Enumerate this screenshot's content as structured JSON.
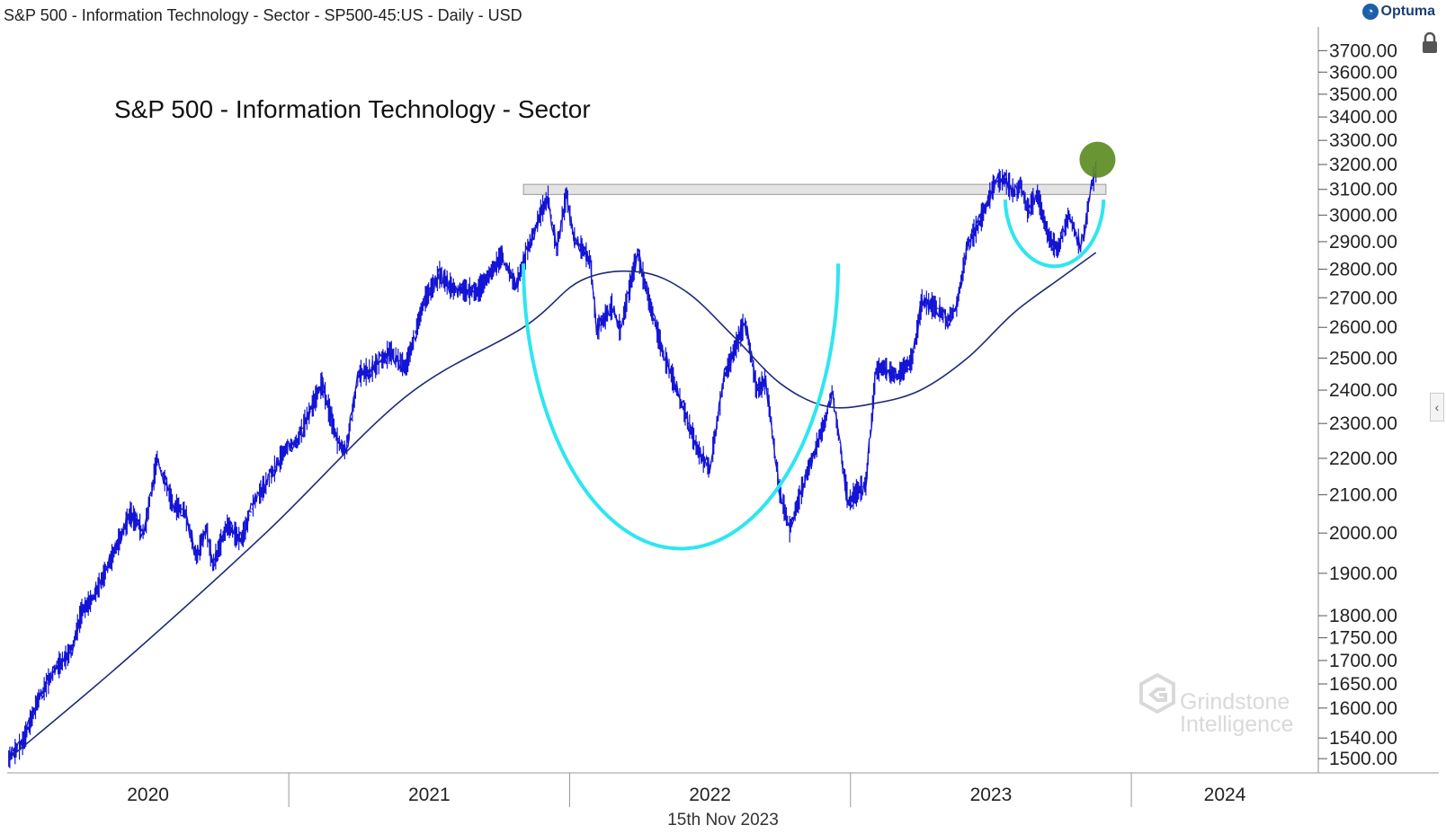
{
  "header": {
    "title": "S&P 500 - Information Technology - Sector - SP500-45:US - Daily - USD",
    "brand": "Optuma"
  },
  "footer": {
    "date": "15th Nov 2023"
  },
  "watermark": {
    "line1": "Grindstone",
    "line2": "Intelligence"
  },
  "icons": {
    "lock": "lock-icon",
    "collapse": "chevron-left-icon",
    "brand": "optuma-logo-icon"
  },
  "colors": {
    "price": "#1414d6",
    "moving_average": "#1e2a7a",
    "cup_arc": "#2ee6f0",
    "resistance": "#cccccc",
    "breakout_marker": "#5a8a1e"
  },
  "chart_data": {
    "type": "line",
    "title": "S&P 500 - Information Technology - Sector",
    "y_scale": "log",
    "ylim": [
      1490,
      3770
    ],
    "y_ticks": [
      {
        "value": 3700,
        "label": "3700.00"
      },
      {
        "value": 3600,
        "label": "3600.00"
      },
      {
        "value": 3500,
        "label": "3500.00"
      },
      {
        "value": 3400,
        "label": "3400.00"
      },
      {
        "value": 3300,
        "label": "3300.00"
      },
      {
        "value": 3200,
        "label": "3200.00"
      },
      {
        "value": 3100,
        "label": "3100.00"
      },
      {
        "value": 3000,
        "label": "3000.00"
      },
      {
        "value": 2900,
        "label": "2900.00"
      },
      {
        "value": 2800,
        "label": "2800.00"
      },
      {
        "value": 2700,
        "label": "2700.00"
      },
      {
        "value": 2600,
        "label": "2600.00"
      },
      {
        "value": 2500,
        "label": "2500.00"
      },
      {
        "value": 2400,
        "label": "2400.00"
      },
      {
        "value": 2300,
        "label": "2300.00"
      },
      {
        "value": 2200,
        "label": "2200.00"
      },
      {
        "value": 2100,
        "label": "2100.00"
      },
      {
        "value": 2000,
        "label": "2000.00"
      },
      {
        "value": 1900,
        "label": "1900.00"
      },
      {
        "value": 1800,
        "label": "1800.00"
      },
      {
        "value": 1750,
        "label": "1750.00"
      },
      {
        "value": 1700,
        "label": "1700.00"
      },
      {
        "value": 1650,
        "label": "1650.00"
      },
      {
        "value": 1600,
        "label": "1600.00"
      },
      {
        "value": 1540,
        "label": "1540.00"
      },
      {
        "value": 1500,
        "label": "1500.00"
      }
    ],
    "x_range": [
      "2019-12-31",
      "2024-08-30"
    ],
    "x_years": [
      {
        "label": "2020",
        "start": "2019-12-31",
        "end": "2020-12-31"
      },
      {
        "label": "2021",
        "start": "2020-12-31",
        "end": "2021-12-31"
      },
      {
        "label": "2022",
        "start": "2021-12-31",
        "end": "2022-12-31"
      },
      {
        "label": "2023",
        "start": "2022-12-31",
        "end": "2023-12-31"
      },
      {
        "label": "2024",
        "start": "2023-12-31",
        "end": "2024-08-30"
      }
    ],
    "series": [
      {
        "style": "price",
        "dates": [
          "2020-01-02",
          "2020-01-20",
          "2020-02-10",
          "2020-03-02",
          "2020-03-23",
          "2020-04-06",
          "2020-04-20",
          "2020-05-11",
          "2020-06-08",
          "2020-06-26",
          "2020-07-13",
          "2020-08-03",
          "2020-08-17",
          "2020-09-02",
          "2020-09-15",
          "2020-09-23",
          "2020-10-12",
          "2020-10-30",
          "2020-11-16",
          "2020-12-07",
          "2020-12-28",
          "2021-01-11",
          "2021-02-12",
          "2021-03-04",
          "2021-03-15",
          "2021-04-01",
          "2021-04-16",
          "2021-05-12",
          "2021-06-01",
          "2021-06-25",
          "2021-07-15",
          "2021-08-02",
          "2021-09-02",
          "2021-09-20",
          "2021-10-04",
          "2021-10-22",
          "2021-11-05",
          "2021-11-22",
          "2021-12-03",
          "2021-12-14",
          "2021-12-27",
          "2022-01-05",
          "2022-01-27",
          "2022-02-04",
          "2022-02-24",
          "2022-03-07",
          "2022-03-29",
          "2022-04-14",
          "2022-05-02",
          "2022-05-12",
          "2022-06-16",
          "2022-07-01",
          "2022-07-20",
          "2022-08-16",
          "2022-08-31",
          "2022-09-12",
          "2022-09-30",
          "2022-10-13",
          "2022-11-03",
          "2022-11-30",
          "2022-12-07",
          "2022-12-28",
          "2023-01-05",
          "2023-01-20",
          "2023-02-02",
          "2023-02-13",
          "2023-03-01",
          "2023-03-22",
          "2023-04-03",
          "2023-04-26",
          "2023-05-05",
          "2023-05-18",
          "2023-06-01",
          "2023-06-15",
          "2023-07-07",
          "2023-07-19",
          "2023-08-03",
          "2023-08-09",
          "2023-08-18",
          "2023-08-31",
          "2023-09-14",
          "2023-09-26",
          "2023-10-11",
          "2023-10-26",
          "2023-11-01",
          "2023-11-08",
          "2023-11-15"
        ],
        "values": [
          1500,
          1530,
          1620,
          1680,
          1720,
          1810,
          1840,
          1920,
          2050,
          2000,
          2200,
          2070,
          2060,
          1940,
          2010,
          1920,
          2020,
          1980,
          2080,
          2150,
          2230,
          2250,
          2420,
          2250,
          2220,
          2450,
          2460,
          2520,
          2470,
          2690,
          2780,
          2730,
          2720,
          2790,
          2850,
          2740,
          2860,
          3000,
          3070,
          2870,
          3080,
          2920,
          2830,
          2590,
          2670,
          2590,
          2860,
          2680,
          2510,
          2450,
          2220,
          2170,
          2440,
          2620,
          2400,
          2430,
          2110,
          2010,
          2150,
          2320,
          2400,
          2080,
          2100,
          2130,
          2460,
          2470,
          2440,
          2500,
          2690,
          2660,
          2620,
          2670,
          2890,
          2960,
          3130,
          3140,
          3080,
          3120,
          3020,
          3080,
          2920,
          2870,
          3000,
          2880,
          2950,
          3100,
          3170
        ]
      },
      {
        "style": "moving_average",
        "dates": [
          "2020-01-02",
          "2020-06-01",
          "2020-12-01",
          "2021-06-01",
          "2021-11-01",
          "2022-01-15",
          "2022-04-01",
          "2022-06-01",
          "2022-08-01",
          "2022-10-01",
          "2022-12-01",
          "2023-02-01",
          "2023-04-01",
          "2023-06-01",
          "2023-08-01",
          "2023-10-01",
          "2023-11-15"
        ],
        "values": [
          1500,
          1700,
          2000,
          2380,
          2600,
          2760,
          2790,
          2720,
          2570,
          2420,
          2350,
          2360,
          2400,
          2500,
          2650,
          2770,
          2860
        ]
      }
    ],
    "annotations": [
      {
        "type": "resistance_band",
        "start": "2021-11-01",
        "end": "2023-11-28",
        "low": 3080,
        "high": 3120
      },
      {
        "type": "cup_arc",
        "start": "2021-11-01",
        "end": "2022-12-15",
        "rim": 2820,
        "bottom": 1960
      },
      {
        "type": "handle_arc",
        "start": "2023-07-20",
        "end": "2023-11-25",
        "rim": 3060,
        "bottom": 2800
      },
      {
        "type": "breakout_marker",
        "date": "2023-11-17",
        "value": 3220
      }
    ]
  }
}
